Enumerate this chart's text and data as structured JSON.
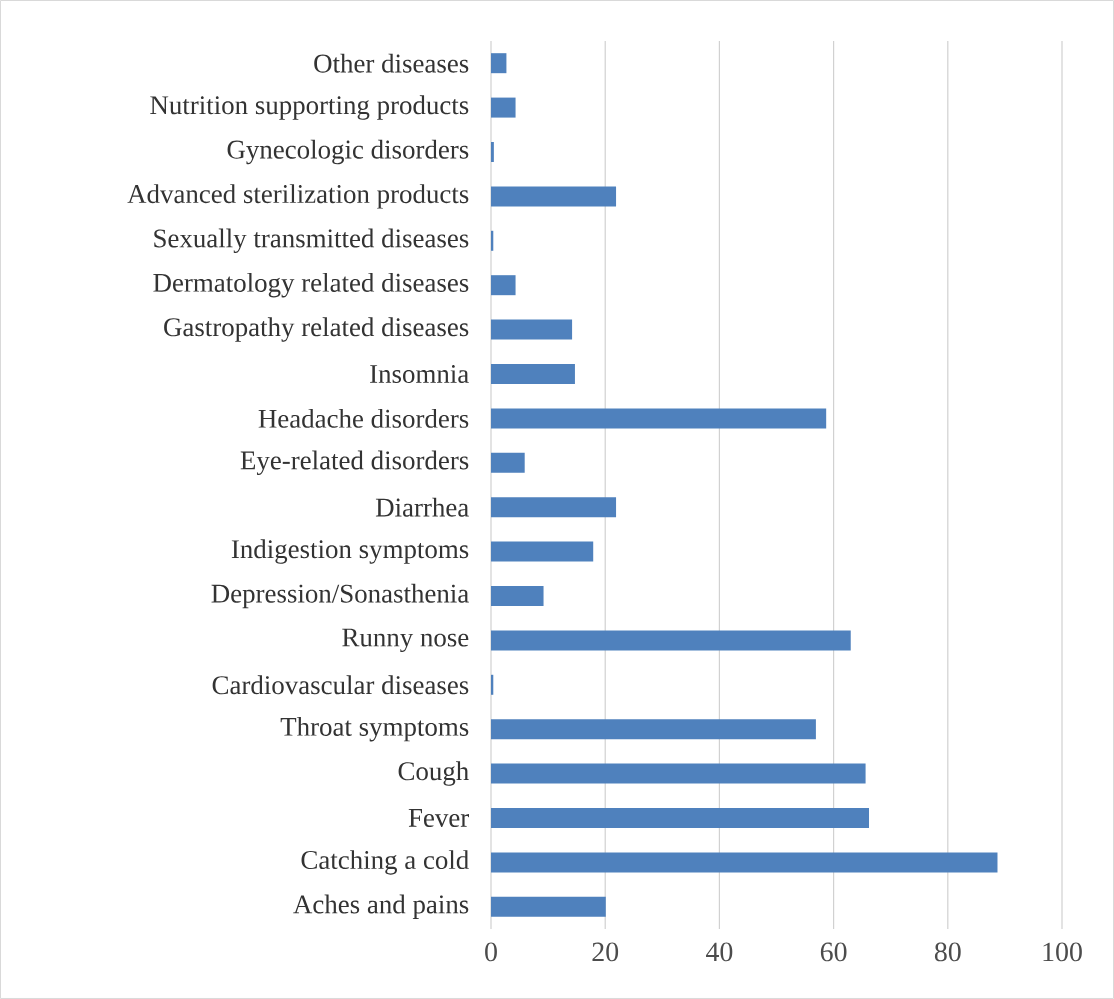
{
  "chart_data": {
    "type": "bar",
    "orientation": "horizontal",
    "categories": [
      "Other diseases",
      "Nutrition supporting products",
      "Gynecologic disorders",
      "Advanced sterilization products",
      "Sexually transmitted diseases",
      "Dermatology related diseases",
      "Gastropathy related diseases",
      "Insomnia",
      "Headache disorders",
      "Eye-related disorders",
      "Diarrhea",
      "Indigestion symptoms",
      "Depression/Sonasthenia",
      "Runny nose",
      "Cardiovascular diseases",
      "Throat symptoms",
      "Cough",
      "Fever",
      "Catching a cold",
      "Aches and pains"
    ],
    "values": [
      2.7,
      4.3,
      0.5,
      21.9,
      0.4,
      4.3,
      14.2,
      14.7,
      58.7,
      5.9,
      21.9,
      17.9,
      9.2,
      63,
      0.4,
      56.9,
      65.6,
      66.2,
      88.7,
      20.1
    ],
    "color": "#4f81bd",
    "xlim": [
      0,
      100
    ],
    "xticks": [
      0,
      20,
      40,
      60,
      80,
      100
    ],
    "grid": "x"
  }
}
